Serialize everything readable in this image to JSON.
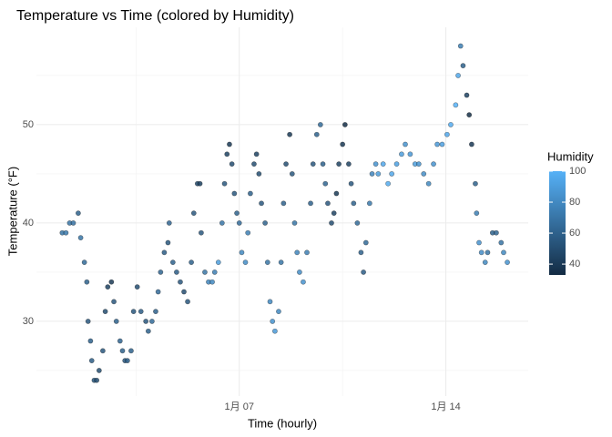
{
  "chart_data": {
    "type": "scatter",
    "title": "Temperature vs Time (colored by Humidity)",
    "x_label": "Time (hourly)",
    "y_label": "Temperature (°F)",
    "legend_title": "Humidity",
    "x": [
      0,
      3,
      6,
      9,
      13,
      15,
      18,
      20,
      21,
      23,
      24,
      26,
      28,
      30,
      33,
      35,
      37,
      40,
      42,
      44,
      47,
      49,
      51,
      53,
      56,
      58,
      61,
      64,
      68,
      70,
      73,
      76,
      78,
      80,
      83,
      86,
      87,
      90,
      93,
      96,
      99,
      102,
      105,
      107,
      110,
      112,
      113,
      116,
      119,
      122,
      124,
      127,
      130,
      132,
      134,
      136,
      138,
      140,
      142,
      144,
      146,
      149,
      151,
      153,
      156,
      158,
      160,
      162,
      165,
      167,
      169,
      171,
      173,
      176,
      178,
      180,
      182,
      185,
      187,
      189,
      191,
      193,
      196,
      199,
      202,
      204,
      207,
      210,
      212,
      214,
      216,
      219,
      221,
      223,
      225,
      228,
      230,
      233,
      235,
      237,
      240,
      243,
      245,
      247,
      250,
      252,
      255,
      257,
      261,
      265,
      268,
      272,
      276,
      279,
      283,
      287,
      290,
      294,
      298,
      302,
      305,
      309,
      313,
      316,
      320,
      322,
      324,
      326,
      329,
      331,
      333,
      336,
      337,
      339,
      341,
      344,
      346,
      350,
      353,
      357,
      359,
      362
    ],
    "values": [
      39,
      39,
      40,
      40,
      41,
      38.5,
      36,
      34,
      30,
      28,
      26,
      24,
      24,
      25,
      27,
      31,
      33.5,
      34,
      32,
      30,
      28,
      27,
      26,
      26,
      27,
      31,
      33.5,
      31,
      30,
      29,
      30,
      31,
      33,
      35,
      37,
      38,
      40,
      36,
      35,
      34,
      33,
      32,
      36,
      41,
      44,
      44,
      39,
      35,
      34,
      34,
      35,
      36,
      40,
      44,
      47,
      48,
      46,
      43,
      41,
      40,
      37,
      36,
      39,
      43,
      46,
      47,
      45,
      42,
      40,
      36,
      32,
      30,
      29,
      31,
      36,
      42,
      46,
      49,
      45,
      40,
      37,
      35,
      34,
      37,
      42,
      46,
      49,
      50,
      46,
      44,
      42,
      40,
      41,
      43,
      46,
      48,
      50,
      46,
      44,
      42,
      40,
      37,
      35,
      38,
      42,
      45,
      46,
      45,
      46,
      44,
      45,
      46,
      47,
      48,
      47,
      46,
      46,
      45,
      44,
      46,
      48,
      48,
      49,
      50,
      52,
      55,
      58,
      56,
      53,
      51,
      48,
      44,
      41,
      38,
      37,
      36,
      37,
      39,
      39,
      38,
      37,
      36
    ],
    "color_values": [
      70,
      72,
      70,
      68,
      60,
      70,
      65,
      60,
      55,
      60,
      58,
      55,
      50,
      50,
      55,
      50,
      45,
      40,
      55,
      60,
      62,
      60,
      55,
      58,
      60,
      55,
      50,
      58,
      55,
      60,
      65,
      60,
      65,
      62,
      58,
      55,
      62,
      60,
      58,
      55,
      50,
      55,
      60,
      55,
      48,
      45,
      55,
      70,
      78,
      80,
      75,
      90,
      70,
      55,
      45,
      40,
      50,
      55,
      60,
      65,
      80,
      82,
      75,
      60,
      50,
      45,
      50,
      55,
      60,
      70,
      80,
      85,
      88,
      80,
      70,
      60,
      50,
      40,
      55,
      70,
      78,
      82,
      85,
      75,
      60,
      55,
      60,
      65,
      60,
      62,
      55,
      50,
      45,
      40,
      45,
      40,
      35,
      45,
      55,
      60,
      65,
      60,
      58,
      65,
      72,
      78,
      85,
      90,
      95,
      97,
      95,
      92,
      90,
      85,
      88,
      90,
      85,
      82,
      80,
      85,
      88,
      92,
      95,
      98,
      100,
      95,
      75,
      60,
      45,
      35,
      40,
      60,
      75,
      85,
      82,
      80,
      70,
      60,
      62,
      70,
      80,
      85
    ],
    "color_low": "#132B43",
    "color_high": "#56B1F7",
    "color_lim": [
      33,
      100
    ],
    "color_ticks": [
      40,
      60,
      80,
      100
    ],
    "xlim": [
      -21,
      379
    ],
    "xticks": [
      {
        "value": 144,
        "label": "1月 07"
      },
      {
        "value": 312,
        "label": "1月 14"
      }
    ],
    "xminor": [
      60,
      228
    ],
    "ylim": [
      22.4,
      59.9
    ],
    "yticks": [
      30,
      40,
      50
    ],
    "yminor": [
      25,
      35,
      45,
      55
    ],
    "grid": true
  }
}
